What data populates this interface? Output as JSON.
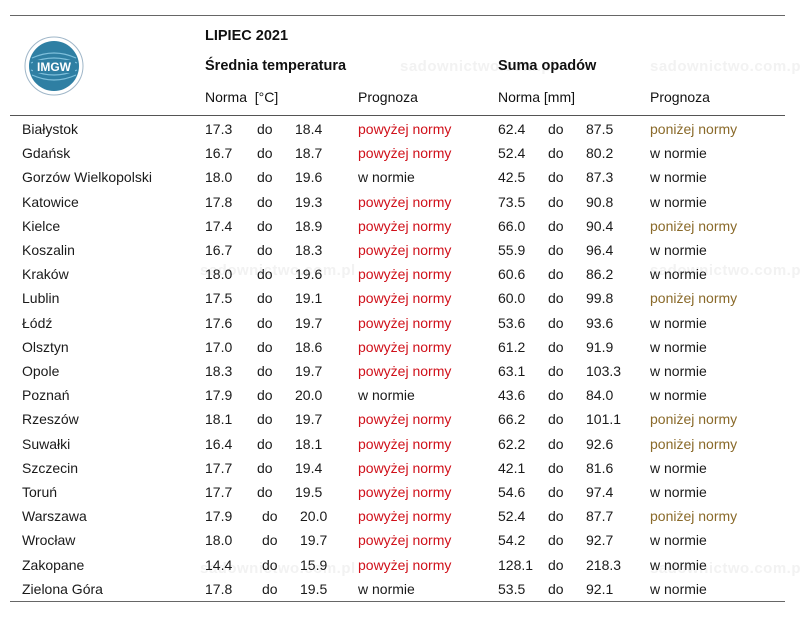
{
  "title": "LIPIEC 2021",
  "logo_text": "IMGW",
  "watermark": "sadownictwo.com.pl",
  "sections": {
    "temperature": "Średnia temperatura",
    "precipitation": "Suma opadów"
  },
  "subheaders": {
    "temp_norm": "Norma  [°C]",
    "temp_forecast": "Prognoza",
    "precip_norm": "Norma [mm]",
    "precip_forecast": "Prognoza"
  },
  "colors": {
    "above": "#d0101a",
    "below": "#8a6a2a",
    "normal": "#1a1a1a"
  },
  "rows": [
    {
      "city": "Białystok",
      "tmin": "17.3",
      "tdo": "do",
      "tmax": "18.4",
      "tfc": "powyżej normy",
      "tfc_kind": "above",
      "pmin": "62.4",
      "pdo": "do",
      "pmax": "87.5",
      "pfc": "poniżej normy",
      "pfc_kind": "below"
    },
    {
      "city": "Gdańsk",
      "tmin": "16.7",
      "tdo": "do",
      "tmax": "18.7",
      "tfc": "powyżej normy",
      "tfc_kind": "above",
      "pmin": "52.4",
      "pdo": "do",
      "pmax": "80.2",
      "pfc": "w normie",
      "pfc_kind": "normal"
    },
    {
      "city": "Gorzów Wielkopolski",
      "tmin": "18.0",
      "tdo": "do",
      "tmax": "19.6",
      "tfc": "w normie",
      "tfc_kind": "normal",
      "pmin": "42.5",
      "pdo": "do",
      "pmax": "87.3",
      "pfc": "w normie",
      "pfc_kind": "normal"
    },
    {
      "city": "Katowice",
      "tmin": "17.8",
      "tdo": "do",
      "tmax": "19.3",
      "tfc": "powyżej normy",
      "tfc_kind": "above",
      "pmin": "73.5",
      "pdo": "do",
      "pmax": "90.8",
      "pfc": "w normie",
      "pfc_kind": "normal"
    },
    {
      "city": "Kielce",
      "tmin": "17.4",
      "tdo": "do",
      "tmax": "18.9",
      "tfc": "powyżej normy",
      "tfc_kind": "above",
      "pmin": "66.0",
      "pdo": "do",
      "pmax": "90.4",
      "pfc": "poniżej normy",
      "pfc_kind": "below"
    },
    {
      "city": "Koszalin",
      "tmin": "16.7",
      "tdo": "do",
      "tmax": "18.3",
      "tfc": "powyżej normy",
      "tfc_kind": "above",
      "pmin": "55.9",
      "pdo": "do",
      "pmax": "96.4",
      "pfc": "w normie",
      "pfc_kind": "normal"
    },
    {
      "city": "Kraków",
      "tmin": "18.0",
      "tdo": "do",
      "tmax": "19.6",
      "tfc": "powyżej normy",
      "tfc_kind": "above",
      "pmin": "60.6",
      "pdo": "do",
      "pmax": "86.2",
      "pfc": "w normie",
      "pfc_kind": "normal"
    },
    {
      "city": "Lublin",
      "tmin": "17.5",
      "tdo": "do",
      "tmax": "19.1",
      "tfc": "powyżej normy",
      "tfc_kind": "above",
      "pmin": "60.0",
      "pdo": "do",
      "pmax": "99.8",
      "pfc": "poniżej normy",
      "pfc_kind": "below"
    },
    {
      "city": "Łódź",
      "tmin": "17.6",
      "tdo": "do",
      "tmax": "19.7",
      "tfc": "powyżej normy",
      "tfc_kind": "above",
      "pmin": "53.6",
      "pdo": "do",
      "pmax": "93.6",
      "pfc": "w normie",
      "pfc_kind": "normal"
    },
    {
      "city": "Olsztyn",
      "tmin": "17.0",
      "tdo": "do",
      "tmax": "18.6",
      "tfc": "powyżej normy",
      "tfc_kind": "above",
      "pmin": "61.2",
      "pdo": "do",
      "pmax": "91.9",
      "pfc": "w normie",
      "pfc_kind": "normal"
    },
    {
      "city": "Opole",
      "tmin": "18.3",
      "tdo": "do",
      "tmax": "19.7",
      "tfc": "powyżej normy",
      "tfc_kind": "above",
      "pmin": "63.1",
      "pdo": "do",
      "pmax": "103.3",
      "pfc": "w normie",
      "pfc_kind": "normal"
    },
    {
      "city": "Poznań",
      "tmin": "17.9",
      "tdo": "do",
      "tmax": "20.0",
      "tfc": "w normie",
      "tfc_kind": "normal",
      "pmin": "43.6",
      "pdo": "do",
      "pmax": "84.0",
      "pfc": "w normie",
      "pfc_kind": "normal"
    },
    {
      "city": "Rzeszów",
      "tmin": "18.1",
      "tdo": "do",
      "tmax": "19.7",
      "tfc": "powyżej normy",
      "tfc_kind": "above",
      "pmin": "66.2",
      "pdo": "do",
      "pmax": "101.1",
      "pfc": "poniżej normy",
      "pfc_kind": "below"
    },
    {
      "city": "Suwałki",
      "tmin": "16.4",
      "tdo": "do",
      "tmax": "18.1",
      "tfc": "powyżej normy",
      "tfc_kind": "above",
      "pmin": "62.2",
      "pdo": "do",
      "pmax": "92.6",
      "pfc": "poniżej normy",
      "pfc_kind": "below"
    },
    {
      "city": "Szczecin",
      "tmin": "17.7",
      "tdo": "do",
      "tmax": "19.4",
      "tfc": "powyżej normy",
      "tfc_kind": "above",
      "pmin": "42.1",
      "pdo": "do",
      "pmax": "81.6",
      "pfc": "w normie",
      "pfc_kind": "normal"
    },
    {
      "city": "Toruń",
      "tmin": "17.7",
      "tdo": "do",
      "tmax": "19.5",
      "tfc": "powyżej normy",
      "tfc_kind": "above",
      "pmin": "54.6",
      "pdo": "do",
      "pmax": "97.4",
      "pfc": "w normie",
      "pfc_kind": "normal"
    },
    {
      "city": "Warszawa",
      "tmin": "17.9",
      "tdo": "do",
      "tmax": "20.0",
      "tfc": "powyżej normy",
      "tfc_kind": "above",
      "pmin": "52.4",
      "pdo": "do",
      "pmax": "87.7",
      "pfc": "poniżej normy",
      "pfc_kind": "below"
    },
    {
      "city": "Wrocław",
      "tmin": "18.0",
      "tdo": "do",
      "tmax": "19.7",
      "tfc": "powyżej normy",
      "tfc_kind": "above",
      "pmin": "54.2",
      "pdo": "do",
      "pmax": "92.7",
      "pfc": "w normie",
      "pfc_kind": "normal"
    },
    {
      "city": "Zakopane",
      "tmin": "14.4",
      "tdo": "do",
      "tmax": "15.9",
      "tfc": "powyżej normy",
      "tfc_kind": "above",
      "pmin": "128.1",
      "pdo": "do",
      "pmax": "218.3",
      "pfc": "w normie",
      "pfc_kind": "normal"
    },
    {
      "city": "Zielona Góra",
      "tmin": "17.8",
      "tdo": "do",
      "tmax": "19.5",
      "tfc": "w normie",
      "tfc_kind": "normal",
      "pmin": "53.5",
      "pdo": "do",
      "pmax": "92.1",
      "pfc": "w normie",
      "pfc_kind": "normal"
    }
  ]
}
